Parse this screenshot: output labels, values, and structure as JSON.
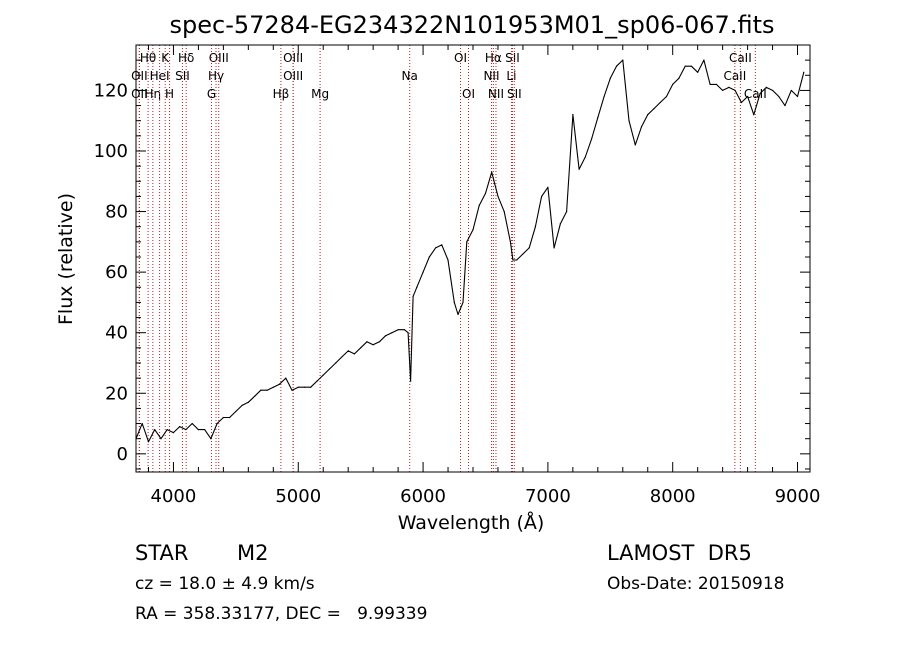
{
  "chart_data": {
    "type": "line",
    "title": "spec-57284-EG234322N101953M01_sp06-067.fits",
    "xlabel": "Wavelength (Å)",
    "ylabel": "Flux (relative)",
    "xlim": [
      3700,
      9100
    ],
    "ylim": [
      -6,
      135
    ],
    "x_ticks": [
      4000,
      5000,
      6000,
      7000,
      8000,
      9000
    ],
    "y_ticks": [
      0,
      20,
      40,
      60,
      80,
      100,
      120
    ],
    "grid": false,
    "series": [
      {
        "color": "#000000",
        "points": [
          [
            3700,
            5
          ],
          [
            3750,
            10
          ],
          [
            3800,
            4
          ],
          [
            3850,
            8
          ],
          [
            3900,
            5
          ],
          [
            3950,
            8
          ],
          [
            4000,
            7
          ],
          [
            4050,
            9
          ],
          [
            4100,
            8
          ],
          [
            4150,
            10
          ],
          [
            4200,
            8
          ],
          [
            4250,
            8
          ],
          [
            4300,
            5
          ],
          [
            4350,
            10
          ],
          [
            4400,
            12
          ],
          [
            4450,
            12
          ],
          [
            4500,
            14
          ],
          [
            4550,
            16
          ],
          [
            4600,
            17
          ],
          [
            4650,
            19
          ],
          [
            4700,
            21
          ],
          [
            4750,
            21
          ],
          [
            4800,
            22
          ],
          [
            4850,
            23
          ],
          [
            4900,
            25
          ],
          [
            4950,
            21
          ],
          [
            5000,
            22
          ],
          [
            5050,
            22
          ],
          [
            5100,
            22
          ],
          [
            5150,
            24
          ],
          [
            5200,
            26
          ],
          [
            5250,
            28
          ],
          [
            5300,
            30
          ],
          [
            5350,
            32
          ],
          [
            5400,
            34
          ],
          [
            5450,
            33
          ],
          [
            5500,
            35
          ],
          [
            5550,
            37
          ],
          [
            5600,
            36
          ],
          [
            5650,
            37
          ],
          [
            5700,
            39
          ],
          [
            5750,
            40
          ],
          [
            5800,
            41
          ],
          [
            5850,
            41
          ],
          [
            5880,
            40
          ],
          [
            5900,
            24
          ],
          [
            5920,
            52
          ],
          [
            5950,
            55
          ],
          [
            6000,
            60
          ],
          [
            6050,
            65
          ],
          [
            6100,
            68
          ],
          [
            6150,
            69
          ],
          [
            6200,
            64
          ],
          [
            6250,
            50
          ],
          [
            6280,
            46
          ],
          [
            6320,
            50
          ],
          [
            6350,
            70
          ],
          [
            6400,
            74
          ],
          [
            6450,
            82
          ],
          [
            6500,
            86
          ],
          [
            6550,
            93
          ],
          [
            6600,
            85
          ],
          [
            6650,
            80
          ],
          [
            6700,
            70
          ],
          [
            6720,
            64
          ],
          [
            6750,
            64
          ],
          [
            6800,
            66
          ],
          [
            6850,
            68
          ],
          [
            6900,
            75
          ],
          [
            6950,
            85
          ],
          [
            7000,
            88
          ],
          [
            7050,
            68
          ],
          [
            7100,
            76
          ],
          [
            7150,
            80
          ],
          [
            7200,
            112
          ],
          [
            7250,
            94
          ],
          [
            7300,
            98
          ],
          [
            7350,
            104
          ],
          [
            7400,
            111
          ],
          [
            7450,
            118
          ],
          [
            7500,
            124
          ],
          [
            7550,
            128
          ],
          [
            7600,
            130
          ],
          [
            7650,
            110
          ],
          [
            7700,
            102
          ],
          [
            7750,
            108
          ],
          [
            7800,
            112
          ],
          [
            7850,
            114
          ],
          [
            7900,
            116
          ],
          [
            7950,
            118
          ],
          [
            8000,
            122
          ],
          [
            8050,
            124
          ],
          [
            8100,
            128
          ],
          [
            8150,
            128
          ],
          [
            8200,
            126
          ],
          [
            8250,
            130
          ],
          [
            8300,
            122
          ],
          [
            8350,
            122
          ],
          [
            8400,
            120
          ],
          [
            8450,
            121
          ],
          [
            8500,
            120
          ],
          [
            8550,
            116
          ],
          [
            8600,
            118
          ],
          [
            8650,
            112
          ],
          [
            8700,
            119
          ],
          [
            8750,
            121
          ],
          [
            8800,
            120
          ],
          [
            8850,
            118
          ],
          [
            8900,
            115
          ],
          [
            8950,
            120
          ],
          [
            9000,
            118
          ],
          [
            9050,
            126
          ]
        ]
      }
    ],
    "spectral_lines": [
      {
        "label": "Hθ",
        "x": 3797,
        "row": 0
      },
      {
        "label": "OII",
        "x": 3727,
        "row": 1
      },
      {
        "label": "OII",
        "x": 3727,
        "row": 2
      },
      {
        "label": "Hη",
        "x": 3835,
        "row": 2
      },
      {
        "label": "K",
        "x": 3934,
        "row": 0
      },
      {
        "label": "HeI",
        "x": 3889,
        "row": 1
      },
      {
        "label": "H",
        "x": 3969,
        "row": 2
      },
      {
        "label": "Hδ",
        "x": 4102,
        "row": 0
      },
      {
        "label": "SII",
        "x": 4072,
        "row": 1
      },
      {
        "label": "OIII",
        "x": 4363,
        "row": 0
      },
      {
        "label": "Hγ",
        "x": 4341,
        "row": 1
      },
      {
        "label": "G",
        "x": 4305,
        "row": 2
      },
      {
        "label": "OIII",
        "x": 4959,
        "row": 0
      },
      {
        "label": "OIII",
        "x": 4959,
        "row": 1
      },
      {
        "label": "Hβ",
        "x": 4861,
        "row": 2
      },
      {
        "label": "Mg",
        "x": 5175,
        "row": 2
      },
      {
        "label": "Na",
        "x": 5893,
        "row": 1
      },
      {
        "label": "OI",
        "x": 6300,
        "row": 0
      },
      {
        "label": "OI",
        "x": 6364,
        "row": 2
      },
      {
        "label": "Hα",
        "x": 6563,
        "row": 0
      },
      {
        "label": "SII",
        "x": 6716,
        "row": 0
      },
      {
        "label": "NII",
        "x": 6548,
        "row": 1
      },
      {
        "label": "Li",
        "x": 6708,
        "row": 1
      },
      {
        "label": "NII",
        "x": 6584,
        "row": 2
      },
      {
        "label": "SII",
        "x": 6731,
        "row": 2
      },
      {
        "label": "CaII",
        "x": 8542,
        "row": 0
      },
      {
        "label": "CaII",
        "x": 8498,
        "row": 1
      },
      {
        "label": "CaII",
        "x": 8662,
        "row": 2
      }
    ],
    "line_color": "#b22222"
  },
  "info": {
    "object_class": "STAR",
    "subclass": "M2",
    "survey": "LAMOST  DR5",
    "cz": "cz = 18.0 ± 4.9 km/s",
    "obs_date": "Obs-Date: 20150918",
    "coords": "RA = 358.33177, DEC =   9.99339"
  }
}
